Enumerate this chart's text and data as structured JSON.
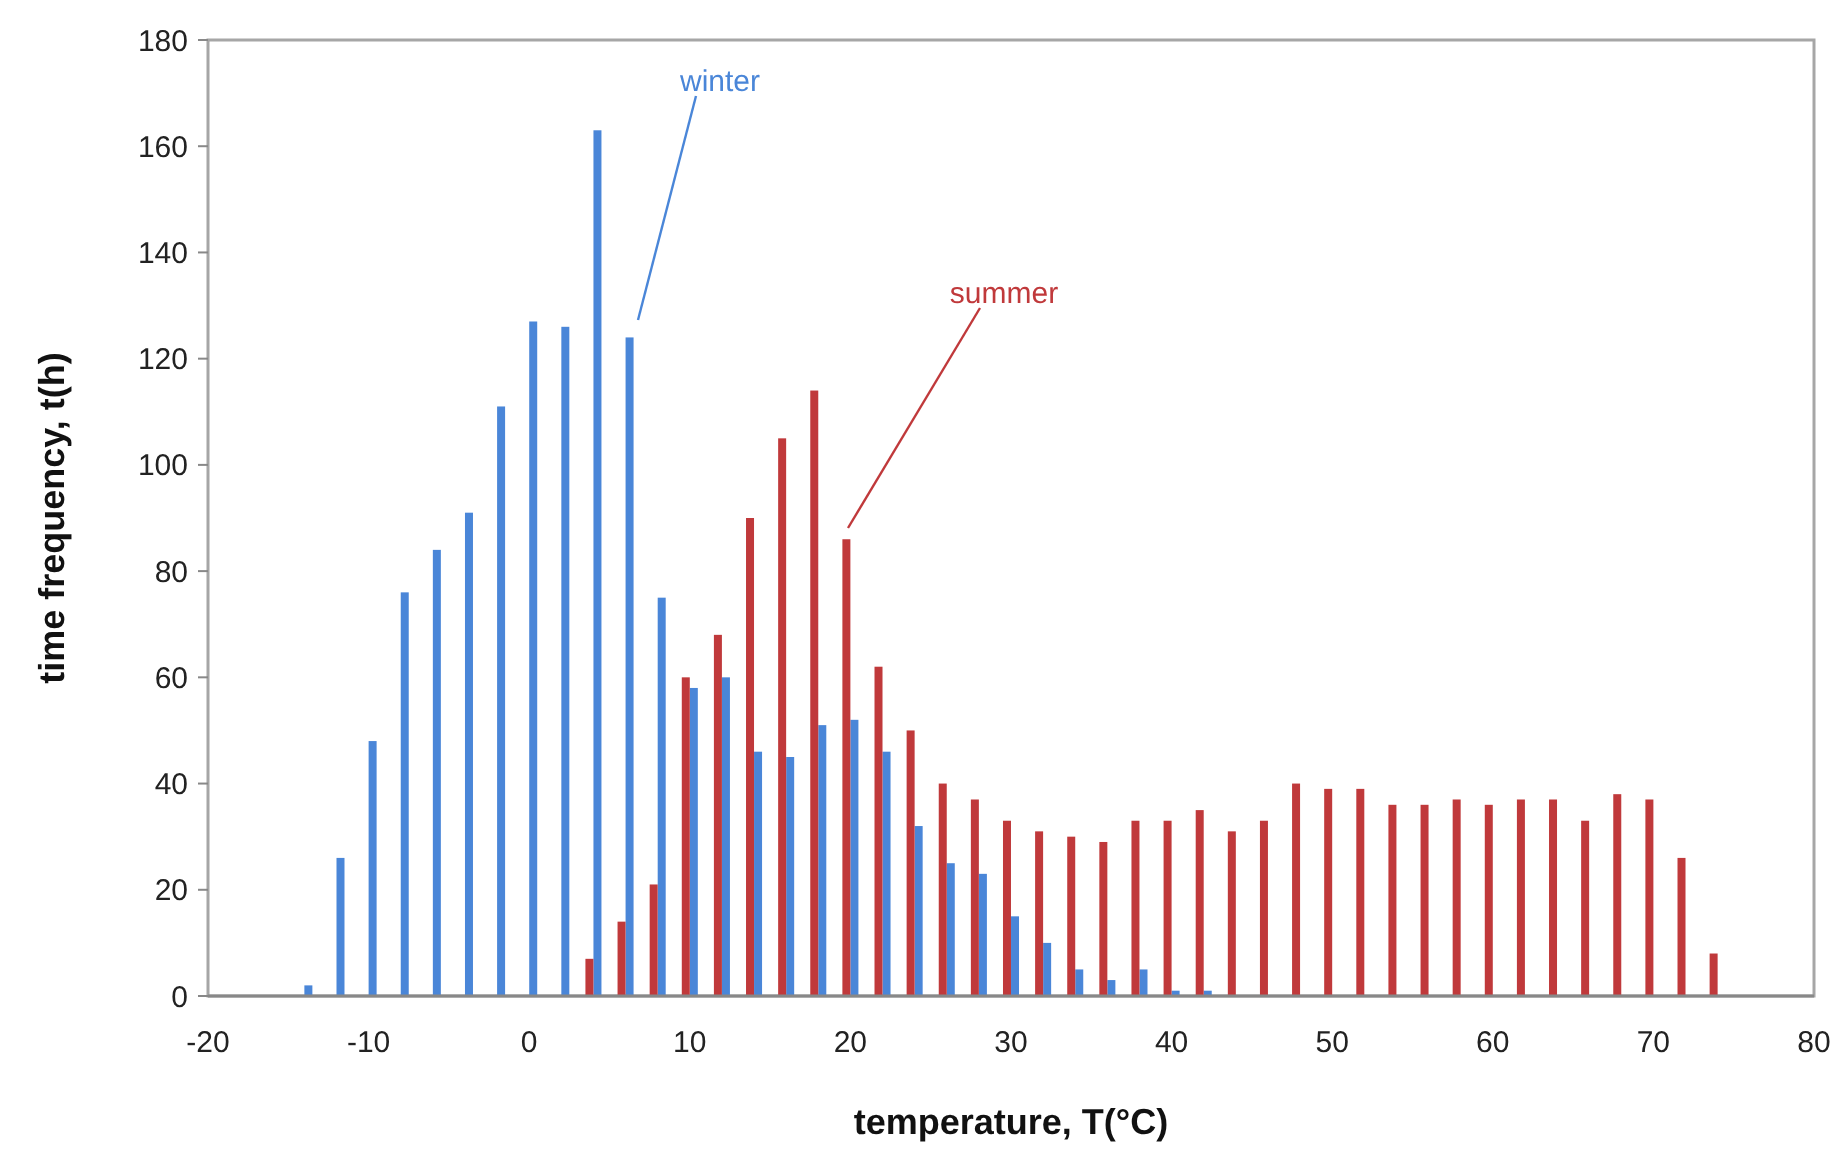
{
  "chart_data": {
    "type": "bar",
    "xlabel": "temperature, T(°C)",
    "ylabel": "time frequency, t(h)",
    "x": [
      -14,
      -12,
      -10,
      -8,
      -6,
      -4,
      -2,
      0,
      2,
      4,
      6,
      8,
      10,
      12,
      14,
      16,
      18,
      20,
      22,
      24,
      26,
      28,
      30,
      32,
      34,
      36,
      38,
      40,
      42,
      44,
      46,
      48,
      50,
      52,
      54,
      56,
      58,
      60,
      62,
      64,
      66,
      68,
      70,
      72,
      74,
      76
    ],
    "series": [
      {
        "name": "winter",
        "color": "#4a86d8",
        "values": [
          2,
          26,
          48,
          76,
          84,
          91,
          111,
          127,
          126,
          163,
          124,
          75,
          58,
          60,
          46,
          45,
          51,
          52,
          46,
          32,
          25,
          23,
          15,
          10,
          5,
          3,
          5,
          1,
          1,
          0,
          0,
          0,
          0,
          0,
          0,
          0,
          0,
          0,
          0,
          0,
          0,
          0,
          0,
          0,
          0,
          0
        ]
      },
      {
        "name": "summer",
        "color": "#c0393b",
        "values": [
          0,
          0,
          0,
          0,
          0,
          0,
          0,
          0,
          0,
          7,
          14,
          21,
          60,
          68,
          90,
          105,
          114,
          86,
          62,
          50,
          40,
          37,
          33,
          31,
          30,
          29,
          33,
          33,
          35,
          31,
          33,
          40,
          39,
          39,
          36,
          36,
          37,
          36,
          37,
          37,
          33,
          38,
          37,
          26,
          8,
          0
        ]
      }
    ],
    "xlim": [
      -20,
      80
    ],
    "xticks": [
      -20,
      -10,
      0,
      10,
      20,
      30,
      40,
      50,
      60,
      70,
      80
    ],
    "ylim": [
      0,
      180
    ],
    "yticks": [
      0,
      20,
      40,
      60,
      80,
      100,
      120,
      140,
      160,
      180
    ],
    "grid": false
  }
}
